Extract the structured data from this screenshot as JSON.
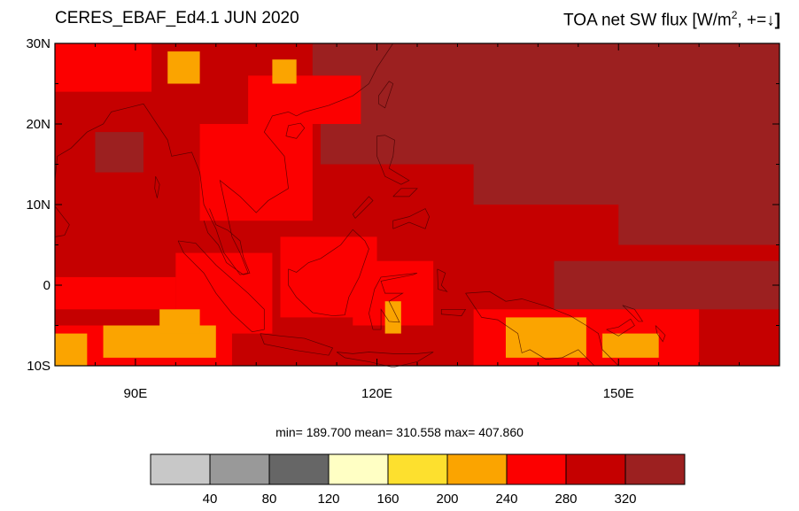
{
  "title_left": "CERES_EBAF_Ed4.1 JUN 2020",
  "title_right": {
    "text": "TOA net SW flux [W/m",
    "sup": "2",
    "suffix": ", +=",
    "arrow": "↓",
    "bracket": "]"
  },
  "map": {
    "lon_range": [
      80,
      170
    ],
    "lat_range": [
      -10,
      30
    ],
    "y_ticks": [
      {
        "value": 30,
        "label": "30N"
      },
      {
        "value": 20,
        "label": "20N"
      },
      {
        "value": 10,
        "label": "10N"
      },
      {
        "value": 0,
        "label": "0"
      },
      {
        "value": -10,
        "label": "10S"
      }
    ],
    "x_ticks": [
      {
        "value": 90,
        "label": "90E"
      },
      {
        "value": 120,
        "label": "120E"
      },
      {
        "value": 150,
        "label": "150E"
      }
    ]
  },
  "stats": {
    "text": "min= 189.700  mean= 310.558  max= 407.860",
    "min": 189.7,
    "mean": 310.558,
    "max": 407.86
  },
  "legend": {
    "colors": [
      "#c8c8c8",
      "#999999",
      "#666666",
      "#ffffc4",
      "#fde02e",
      "#fba400",
      "#fc0000",
      "#c50000",
      "#9c2020"
    ],
    "labels": [
      "40",
      "80",
      "120",
      "160",
      "200",
      "240",
      "280",
      "320"
    ]
  },
  "palette": {
    "p200": "#fba400",
    "p240": "#fc0000",
    "p280": "#c50000",
    "p320": "#9c2020"
  }
}
